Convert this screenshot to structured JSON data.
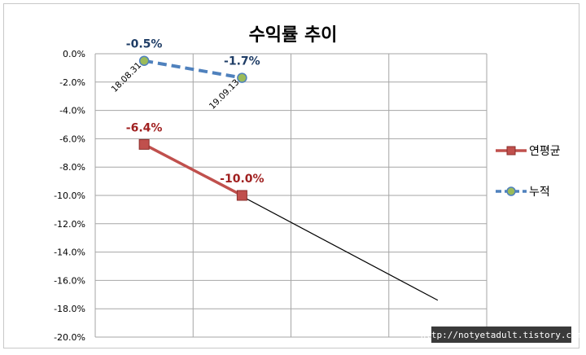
{
  "chart_data": {
    "type": "line",
    "title": "수익률 추이",
    "ylim": [
      -20,
      0
    ],
    "yticks": [
      "0.0%",
      "-2.0%",
      "-4.0%",
      "-6.0%",
      "-8.0%",
      "-10.0%",
      "-12.0%",
      "-14.0%",
      "-16.0%",
      "-18.0%",
      "-20.0%"
    ],
    "x_categories": [
      "18.08.31",
      "19.09.13"
    ],
    "grid": true,
    "legend_position": "right",
    "series": [
      {
        "name": "연평균",
        "values": [
          -6.4,
          -10.0
        ],
        "labels": [
          "-6.4%",
          "-10.0%"
        ],
        "color": "#c0504d",
        "marker": "square",
        "trendline": {
          "x": [
            1,
            4
          ],
          "y": [
            -6.4,
            -17.4
          ]
        }
      },
      {
        "name": "누적",
        "values": [
          -0.5,
          -1.7
        ],
        "labels": [
          "-0.5%",
          "-1.7%"
        ],
        "color": "#4f81bd",
        "marker": "circle",
        "style": "dashed"
      }
    ]
  },
  "watermark": "http://notyetadult.tistory.com"
}
